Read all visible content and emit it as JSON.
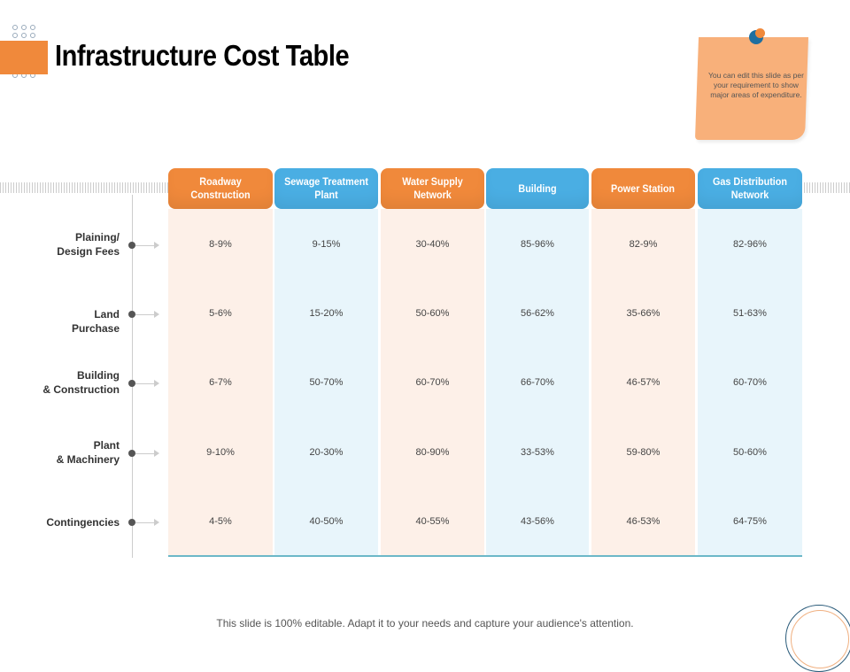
{
  "title": "Infrastructure Cost Table",
  "note": "You can edit this slide as per your requirement to show major areas of expenditure.",
  "colors": {
    "orange": "#f0893b",
    "blue": "#4aaee3",
    "orange_bg": "#fdf0e8",
    "blue_bg": "#e8f5fb"
  },
  "columns": [
    {
      "label": "Roadway Construction",
      "color": "orange"
    },
    {
      "label": "Sewage Treatment Plant",
      "color": "blue"
    },
    {
      "label": "Water Supply Network",
      "color": "orange"
    },
    {
      "label": "Building",
      "color": "blue"
    },
    {
      "label": "Power Station",
      "color": "orange"
    },
    {
      "label": "Gas Distribution Network",
      "color": "blue"
    }
  ],
  "rows": [
    {
      "label": "Plaining/ Design Fees",
      "values": [
        "8-9%",
        "9-15%",
        "30-40%",
        "85-96%",
        "82-9%",
        "82-96%"
      ]
    },
    {
      "label": "Land Purchase",
      "values": [
        "5-6%",
        "15-20%",
        "50-60%",
        "56-62%",
        "35-66%",
        "51-63%"
      ]
    },
    {
      "label": "Building & Construction",
      "values": [
        "6-7%",
        "50-70%",
        "60-70%",
        "66-70%",
        "46-57%",
        "60-70%"
      ]
    },
    {
      "label": "Plant & Machinery",
      "values": [
        "9-10%",
        "20-30%",
        "80-90%",
        "33-53%",
        "59-80%",
        "50-60%"
      ]
    },
    {
      "label": "Contingencies",
      "values": [
        "4-5%",
        "40-50%",
        "40-55%",
        "43-56%",
        "46-53%",
        "64-75%"
      ]
    }
  ],
  "footer": "This slide is 100% editable. Adapt it to your needs and capture your audience's attention."
}
